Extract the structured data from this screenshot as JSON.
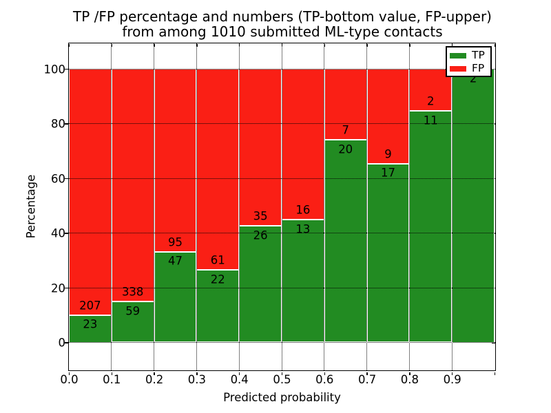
{
  "title": {
    "line1": "TP /FP percentage and numbers (TP-bottom value, FP-upper)",
    "line2": "from among 1010 submitted ML-type contacts"
  },
  "chart_data": {
    "type": "bar",
    "stacked": true,
    "title": "TP /FP percentage and numbers (TP-bottom value, FP-upper) from among 1010 submitted ML-type contacts",
    "xlabel": "Predicted probability",
    "ylabel": "Percentage",
    "total_contacts": 1010,
    "bin_width": 0.1,
    "categories": [
      "0.0-0.1",
      "0.1-0.2",
      "0.2-0.3",
      "0.3-0.4",
      "0.4-0.5",
      "0.5-0.6",
      "0.6-0.7",
      "0.7-0.8",
      "0.8-0.9",
      "0.9-1.0"
    ],
    "series": [
      {
        "name": "TP",
        "color": "#228b22",
        "values": [
          23,
          59,
          47,
          22,
          26,
          13,
          20,
          17,
          11,
          2
        ]
      },
      {
        "name": "FP",
        "color": "#fa1f15",
        "values": [
          207,
          338,
          95,
          61,
          35,
          16,
          7,
          9,
          2,
          0
        ]
      }
    ],
    "bars_are_percent_of_bin_total": true,
    "x_tick_labels": [
      "0.0",
      "0.1",
      "0.2",
      "0.3",
      "0.4",
      "0.5",
      "0.6",
      "0.7",
      "0.8",
      "0.9"
    ],
    "y_tick_values": [
      0,
      20,
      40,
      60,
      80,
      100
    ],
    "y_tick_labels": [
      "0",
      "20",
      "40",
      "60",
      "80",
      "100"
    ],
    "xlim": [
      0.0,
      1.0
    ],
    "ylim": [
      -10,
      110
    ],
    "grid": "dotted",
    "legend_position": "upper right"
  },
  "legend": {
    "items": [
      {
        "label": "TP",
        "color": "#228b22"
      },
      {
        "label": "FP",
        "color": "#fa1f15"
      }
    ]
  }
}
